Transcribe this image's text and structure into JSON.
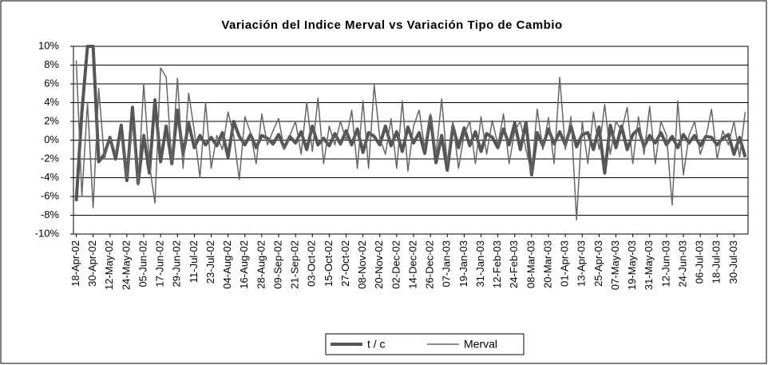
{
  "chart_data": {
    "type": "line",
    "title": "Variación del Indice Merval vs Variación Tipo de Cambio",
    "categories": [
      "18-Apr-02",
      null,
      null,
      "30-Apr-02",
      null,
      null,
      "12-May-02",
      null,
      null,
      "24-May-02",
      null,
      null,
      "05-Jun-02",
      null,
      null,
      "17-Jun-02",
      null,
      null,
      "29-Jun-02",
      null,
      null,
      "11-Jul-02",
      null,
      null,
      "23-Jul-02",
      null,
      null,
      "04-Aug-02",
      null,
      null,
      "16-Aug-02",
      null,
      null,
      "28-Aug-02",
      null,
      null,
      "09-Sep-02",
      null,
      null,
      "21-Sep-02",
      null,
      null,
      "03-Oct-02",
      null,
      null,
      "15-Oct-02",
      null,
      null,
      "27-Oct-02",
      null,
      null,
      "08-Nov-02",
      null,
      null,
      "20-Nov-02",
      null,
      null,
      "02-Dec-02",
      null,
      null,
      "14-Dec-02",
      null,
      null,
      "26-Dec-02",
      null,
      null,
      "07-Jan-03",
      null,
      null,
      "19-Jan-03",
      null,
      null,
      "31-Jan-03",
      null,
      null,
      "12-Feb-03",
      null,
      null,
      "24-Feb-03",
      null,
      null,
      "08-Mar-03",
      null,
      null,
      "20-Mar-03",
      null,
      null,
      "01-Apr-03",
      null,
      null,
      "13-Apr-03",
      null,
      null,
      "25-Apr-03",
      null,
      null,
      "07-May-03",
      null,
      null,
      "19-May-03",
      null,
      null,
      "31-May-03",
      null,
      null,
      "12-Jun-03",
      null,
      null,
      "24-Jun-03",
      null,
      null,
      "06-Jul-03",
      null,
      null,
      "18-Jul-03",
      null,
      null,
      "30-Jul-03",
      null,
      null
    ],
    "series": [
      {
        "name": "t / c",
        "color": "#555555",
        "width": 4,
        "values": [
          -6.5,
          3,
          10,
          10,
          -2.3,
          -1.5,
          0.3,
          -2,
          1.6,
          -4.3,
          3.5,
          -4.6,
          0.5,
          -3.5,
          4.3,
          -2.3,
          1.5,
          -2.5,
          3.2,
          -1.5,
          1.8,
          -0.8,
          0.5,
          -0.5,
          0.3,
          -0.6,
          0.8,
          -1.8,
          2,
          0.4,
          -0.5,
          0.6,
          -0.8,
          0.5,
          0.2,
          -0.4,
          0.6,
          -0.8,
          0.4,
          -0.3,
          0.9,
          -1,
          1.5,
          -0.5,
          0.2,
          -0.6,
          0.7,
          -0.4,
          1,
          -0.5,
          1.2,
          -1.3,
          0.8,
          0.4,
          -0.5,
          1.5,
          -0.6,
          0.9,
          -1.2,
          1.4,
          -0.3,
          0.8,
          -1.4,
          2.5,
          -2.4,
          0.5,
          -3.2,
          1.5,
          -0.8,
          1.3,
          -0.6,
          0.9,
          -1.2,
          0.7,
          0.3,
          -0.8,
          1.2,
          -0.5,
          1.8,
          -1,
          1.9,
          -3.7,
          0.8,
          -0.6,
          1.2,
          -0.4,
          0.9,
          -0.5,
          1.5,
          -0.7,
          0.6,
          0.8,
          -1,
          1.4,
          -3.5,
          1.6,
          -0.8,
          1.5,
          -1,
          0.6,
          1.2,
          -0.7,
          0.5,
          -0.3,
          0.8,
          -0.5,
          0.4,
          -0.8,
          0.6,
          -0.3,
          0.5,
          -0.6,
          0.4,
          0.3,
          -0.5,
          0.2,
          0.6,
          -1.5,
          0.3,
          -1.8
        ]
      },
      {
        "name": "Merval",
        "color": "#666666",
        "width": 1.5,
        "values": [
          8.5,
          -6,
          4,
          -7.2,
          5.5,
          -2,
          0.3,
          -1.5,
          0.5,
          -4,
          2,
          -4.8,
          6,
          -2.5,
          -6.7,
          7.7,
          6.7,
          -2.5,
          6.6,
          -3,
          5,
          1,
          -4,
          4,
          -3,
          0.5,
          -1,
          3,
          0.5,
          -4.2,
          2.5,
          0.8,
          -2.5,
          2.8,
          -0.5,
          1,
          2.3,
          -1,
          0.5,
          2,
          -1.5,
          4,
          -1.2,
          4.5,
          -2.5,
          1.5,
          -0.5,
          2,
          0,
          3.2,
          -3,
          4.2,
          -3,
          5.9,
          0.2,
          -1.5,
          2.3,
          -3,
          4.2,
          -3.3,
          1.5,
          3.2,
          -1,
          2.8,
          -1.5,
          4.4,
          -2.5,
          2,
          -3,
          0.6,
          2,
          -2.5,
          2.5,
          -1.5,
          2.1,
          -0.5,
          2.8,
          -2.5,
          1,
          2,
          -1,
          -3.5,
          3.3,
          -1,
          2.4,
          -2.5,
          6.7,
          -1,
          2.5,
          -8.5,
          2,
          -2.5,
          3,
          -1,
          3.8,
          -1.5,
          2,
          1,
          3.5,
          -2.5,
          2.5,
          -1.5,
          3.6,
          -2.5,
          2,
          0.5,
          -6.9,
          4.2,
          -3.7,
          0.5,
          2,
          -1.5,
          0.3,
          3.3,
          -2,
          1,
          -0.5,
          2,
          -1.8,
          3
        ]
      }
    ],
    "ylim": [
      -10,
      10
    ],
    "yticks": [
      {
        "value": -10,
        "label": "-10%"
      },
      {
        "value": -8,
        "label": "-8%"
      },
      {
        "value": -6,
        "label": "-6%"
      },
      {
        "value": -4,
        "label": "-4%"
      },
      {
        "value": -2,
        "label": "-2%"
      },
      {
        "value": 0,
        "label": "0%"
      },
      {
        "value": 2,
        "label": "2%"
      },
      {
        "value": 4,
        "label": "4%"
      },
      {
        "value": 6,
        "label": "6%"
      },
      {
        "value": 8,
        "label": "8%"
      },
      {
        "value": 10,
        "label": "10%"
      }
    ],
    "grid": true,
    "legend": "bottom"
  }
}
